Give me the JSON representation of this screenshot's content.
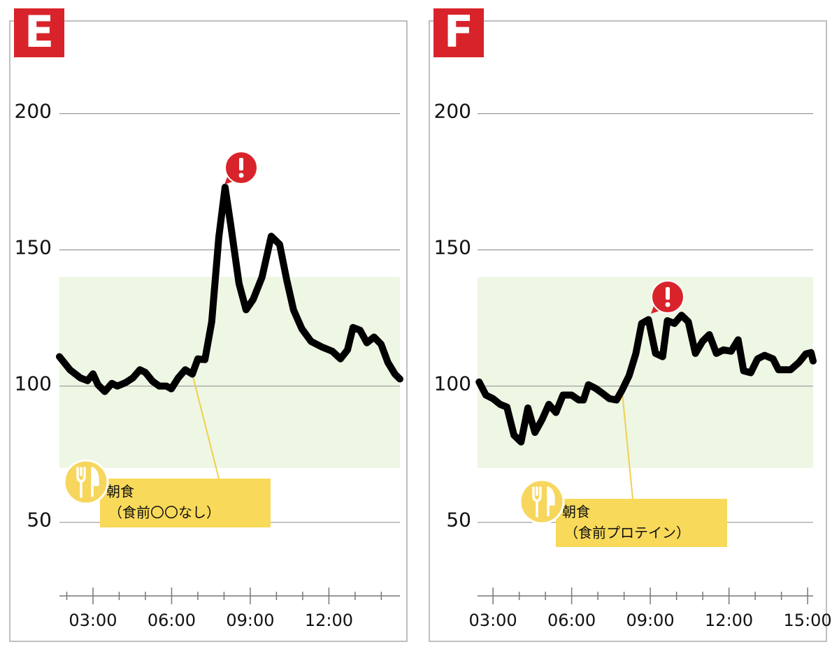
{
  "chart_data": [
    {
      "type": "line",
      "label": "E",
      "color": "#000000",
      "x": [
        1.72,
        2.12,
        2.52,
        2.79,
        3.0,
        3.19,
        3.45,
        3.72,
        3.93,
        4.25,
        4.52,
        4.79,
        5.0,
        5.27,
        5.53,
        5.8,
        5.99,
        6.25,
        6.52,
        6.79,
        7.0,
        7.27,
        7.53,
        7.8,
        8.04,
        8.25,
        8.57,
        8.84,
        9.11,
        9.45,
        9.8,
        10.12,
        10.39,
        10.65,
        10.97,
        11.32,
        11.72,
        12.13,
        12.44,
        12.71,
        12.92,
        13.19,
        13.45,
        13.72,
        13.99,
        14.25,
        14.52,
        14.71
      ],
      "values": [
        110.8,
        106,
        103,
        102,
        104.5,
        100.5,
        98,
        101,
        100,
        101.3,
        103,
        106,
        105,
        101.8,
        100,
        100,
        99,
        103,
        106,
        104.4,
        110,
        109.7,
        123.6,
        154.6,
        173,
        159.5,
        137.7,
        128,
        131.8,
        140,
        155,
        152,
        139,
        128,
        121,
        116.4,
        114.4,
        112.8,
        110,
        113.3,
        121.5,
        120.5,
        115.9,
        118,
        115.4,
        108.7,
        104.4,
        102.6
      ],
      "xlim": [
        1.72,
        14.71
      ],
      "ylim": [
        23,
        234
      ],
      "xticks": [
        {
          "value": 3,
          "label": "03:00"
        },
        {
          "value": 6,
          "label": "06:00"
        },
        {
          "value": 9,
          "label": "09:00"
        },
        {
          "value": 12,
          "label": "12:00"
        }
      ],
      "xminorticks": [
        2,
        4,
        5,
        7,
        8,
        10,
        11,
        13,
        14
      ],
      "yticks": [
        50,
        100,
        150,
        200
      ],
      "grid": true,
      "target_range": [
        70,
        140
      ],
      "annotation": [
        "朝食",
        "（食前〇〇なし）"
      ]
    },
    {
      "type": "line",
      "label": "F",
      "color": "#000000",
      "x": [
        2.47,
        2.73,
        3.0,
        3.27,
        3.53,
        3.8,
        4.07,
        4.33,
        4.6,
        4.87,
        5.13,
        5.4,
        5.67,
        6.0,
        6.27,
        6.45,
        6.64,
        6.91,
        7.17,
        7.44,
        7.71,
        7.92,
        8.19,
        8.45,
        8.67,
        8.93,
        9.2,
        9.47,
        9.65,
        9.92,
        10.19,
        10.45,
        10.72,
        10.99,
        11.25,
        11.52,
        11.79,
        12.08,
        12.35,
        12.56,
        12.83,
        13.09,
        13.36,
        13.68,
        13.89,
        14.35,
        14.67,
        14.93,
        15.13,
        15.21
      ],
      "values": [
        101.5,
        96.7,
        95.4,
        93.3,
        92.3,
        82,
        79.5,
        92,
        83,
        87.7,
        93.3,
        90.3,
        96.7,
        96.7,
        94.9,
        94.9,
        100.5,
        99.2,
        97.4,
        95.4,
        94.9,
        98.5,
        103.8,
        112,
        123,
        124.4,
        112,
        110.8,
        124,
        123,
        126,
        123.6,
        112,
        116.4,
        118.9,
        112,
        113.3,
        112.8,
        117,
        105.6,
        104.9,
        110,
        111.3,
        110,
        106,
        106,
        108.7,
        111.8,
        112.3,
        109.2
      ],
      "xlim": [
        2.41,
        15.21
      ],
      "ylim": [
        23,
        234
      ],
      "xticks": [
        {
          "value": 3,
          "label": "03:00"
        },
        {
          "value": 6,
          "label": "06:00"
        },
        {
          "value": 9,
          "label": "09:00"
        },
        {
          "value": 12,
          "label": "12:00"
        },
        {
          "value": 15,
          "label": "15:00"
        }
      ],
      "xminorticks": [
        4,
        5,
        7,
        8,
        10,
        11,
        13,
        14
      ],
      "yticks": [
        50,
        100,
        150,
        200
      ],
      "grid": true,
      "target_range": [
        70,
        140
      ],
      "annotation": [
        "朝食",
        "（食前プロテイン）"
      ]
    }
  ]
}
